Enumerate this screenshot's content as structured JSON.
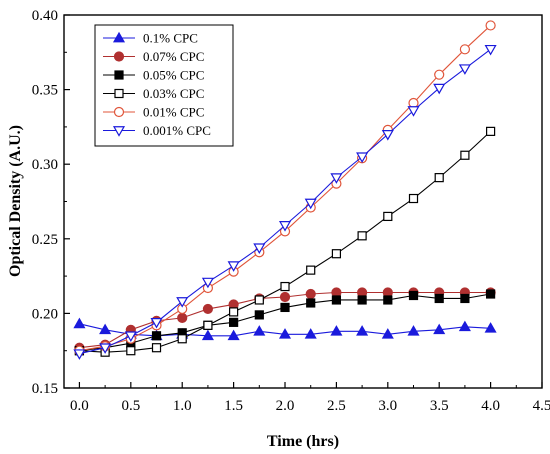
{
  "chart_data": {
    "type": "line",
    "xlabel": "Time (hrs)",
    "ylabel": "Optical Density (A.U.)",
    "xlim": [
      -0.15,
      4.5
    ],
    "ylim": [
      0.15,
      0.4
    ],
    "xticks": [
      "0.0",
      "0.5",
      "1.0",
      "1.5",
      "2.0",
      "2.5",
      "3.0",
      "3.5",
      "4.0",
      "4.5"
    ],
    "yticks": [
      "0.15",
      "0.20",
      "0.25",
      "0.30",
      "0.35",
      "0.40"
    ],
    "legend_position": "top-left",
    "grid": false,
    "x": [
      0,
      0.25,
      0.5,
      0.75,
      1.0,
      1.25,
      1.5,
      1.75,
      2.0,
      2.25,
      2.5,
      2.75,
      3.0,
      3.25,
      3.5,
      3.75,
      4.0
    ],
    "series": [
      {
        "name": "0.1% CPC",
        "color": "#1a1adc",
        "marker": "triangle-up-filled",
        "values": [
          0.193,
          0.189,
          0.186,
          0.185,
          0.186,
          0.185,
          0.185,
          0.188,
          0.186,
          0.186,
          0.188,
          0.188,
          0.186,
          0.188,
          0.189,
          0.191,
          0.19
        ]
      },
      {
        "name": "0.07% CPC",
        "color": "#b03030",
        "marker": "circle-filled",
        "values": [
          0.177,
          0.179,
          0.189,
          0.195,
          0.197,
          0.203,
          0.206,
          0.21,
          0.211,
          0.213,
          0.214,
          0.214,
          0.214,
          0.214,
          0.214,
          0.214,
          0.214
        ]
      },
      {
        "name": "0.05% CPC",
        "color": "#000000",
        "marker": "square-filled",
        "values": [
          0.175,
          0.177,
          0.18,
          0.185,
          0.187,
          0.192,
          0.194,
          0.199,
          0.204,
          0.207,
          0.209,
          0.209,
          0.209,
          0.212,
          0.21,
          0.21,
          0.213
        ]
      },
      {
        "name": "0.03% CPC",
        "color": "#000000",
        "marker": "square-open",
        "values": [
          0.175,
          0.174,
          0.175,
          0.177,
          0.183,
          0.192,
          0.201,
          0.209,
          0.218,
          0.229,
          0.24,
          0.252,
          0.265,
          0.277,
          0.291,
          0.306,
          0.322
        ]
      },
      {
        "name": "0.01% CPC",
        "color": "#e0553a",
        "marker": "circle-open",
        "values": [
          0.175,
          0.178,
          0.183,
          0.192,
          0.203,
          0.217,
          0.228,
          0.241,
          0.255,
          0.271,
          0.287,
          0.304,
          0.323,
          0.341,
          0.36,
          0.377,
          0.393
        ]
      },
      {
        "name": "0.001% CPC",
        "color": "#1a1adc",
        "marker": "triangle-down-open",
        "values": [
          0.173,
          0.177,
          0.185,
          0.194,
          0.208,
          0.221,
          0.232,
          0.244,
          0.259,
          0.274,
          0.291,
          0.305,
          0.32,
          0.336,
          0.351,
          0.364,
          0.377
        ]
      }
    ]
  }
}
